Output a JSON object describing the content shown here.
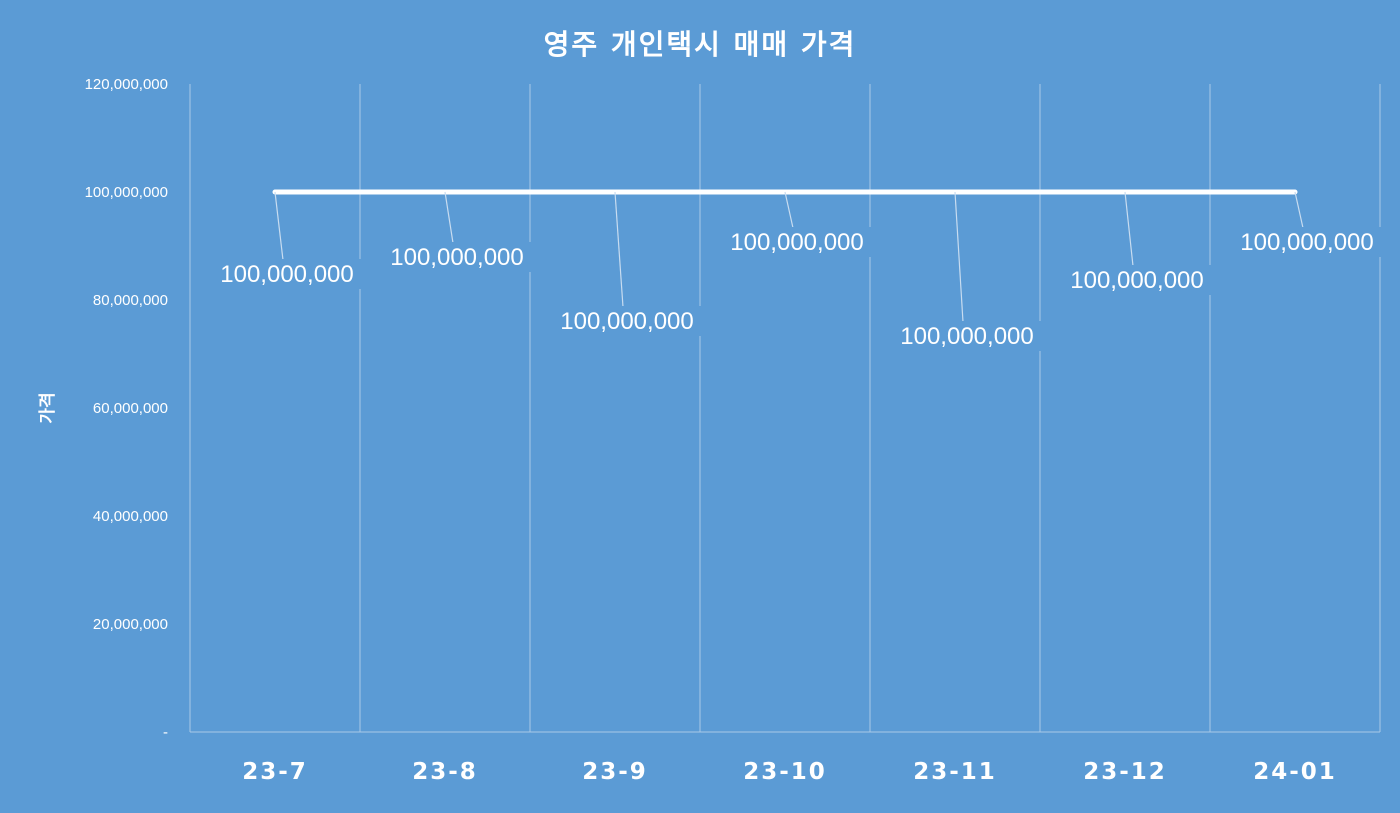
{
  "chart_data": {
    "type": "line",
    "title": "영주 개인택시 매매 가격",
    "xlabel": "",
    "ylabel": "가격",
    "categories": [
      "23-7",
      "23-8",
      "23-9",
      "23-10",
      "23-11",
      "23-12",
      "24-01"
    ],
    "series": [
      {
        "values": [
          100000000,
          100000000,
          100000000,
          100000000,
          100000000,
          100000000,
          100000000
        ],
        "color": "#ffffff"
      }
    ],
    "data_labels": [
      "100,000,000",
      "100,000,000",
      "100,000,000",
      "100,000,000",
      "100,000,000",
      "100,000,000",
      "100,000,000"
    ],
    "ylim": [
      0,
      120000000
    ],
    "yticks": [
      0,
      20000000,
      40000000,
      60000000,
      80000000,
      100000000,
      120000000
    ],
    "ytick_labels": [
      "-",
      "20,000,000",
      "40,000,000",
      "60,000,000",
      "80,000,000",
      "100,000,000",
      "120,000,000"
    ],
    "grid": "vertical",
    "legend": "none",
    "colors": {
      "background": "#5b9bd5",
      "gridline": "#a9c8e8",
      "text": "#ffffff"
    }
  }
}
